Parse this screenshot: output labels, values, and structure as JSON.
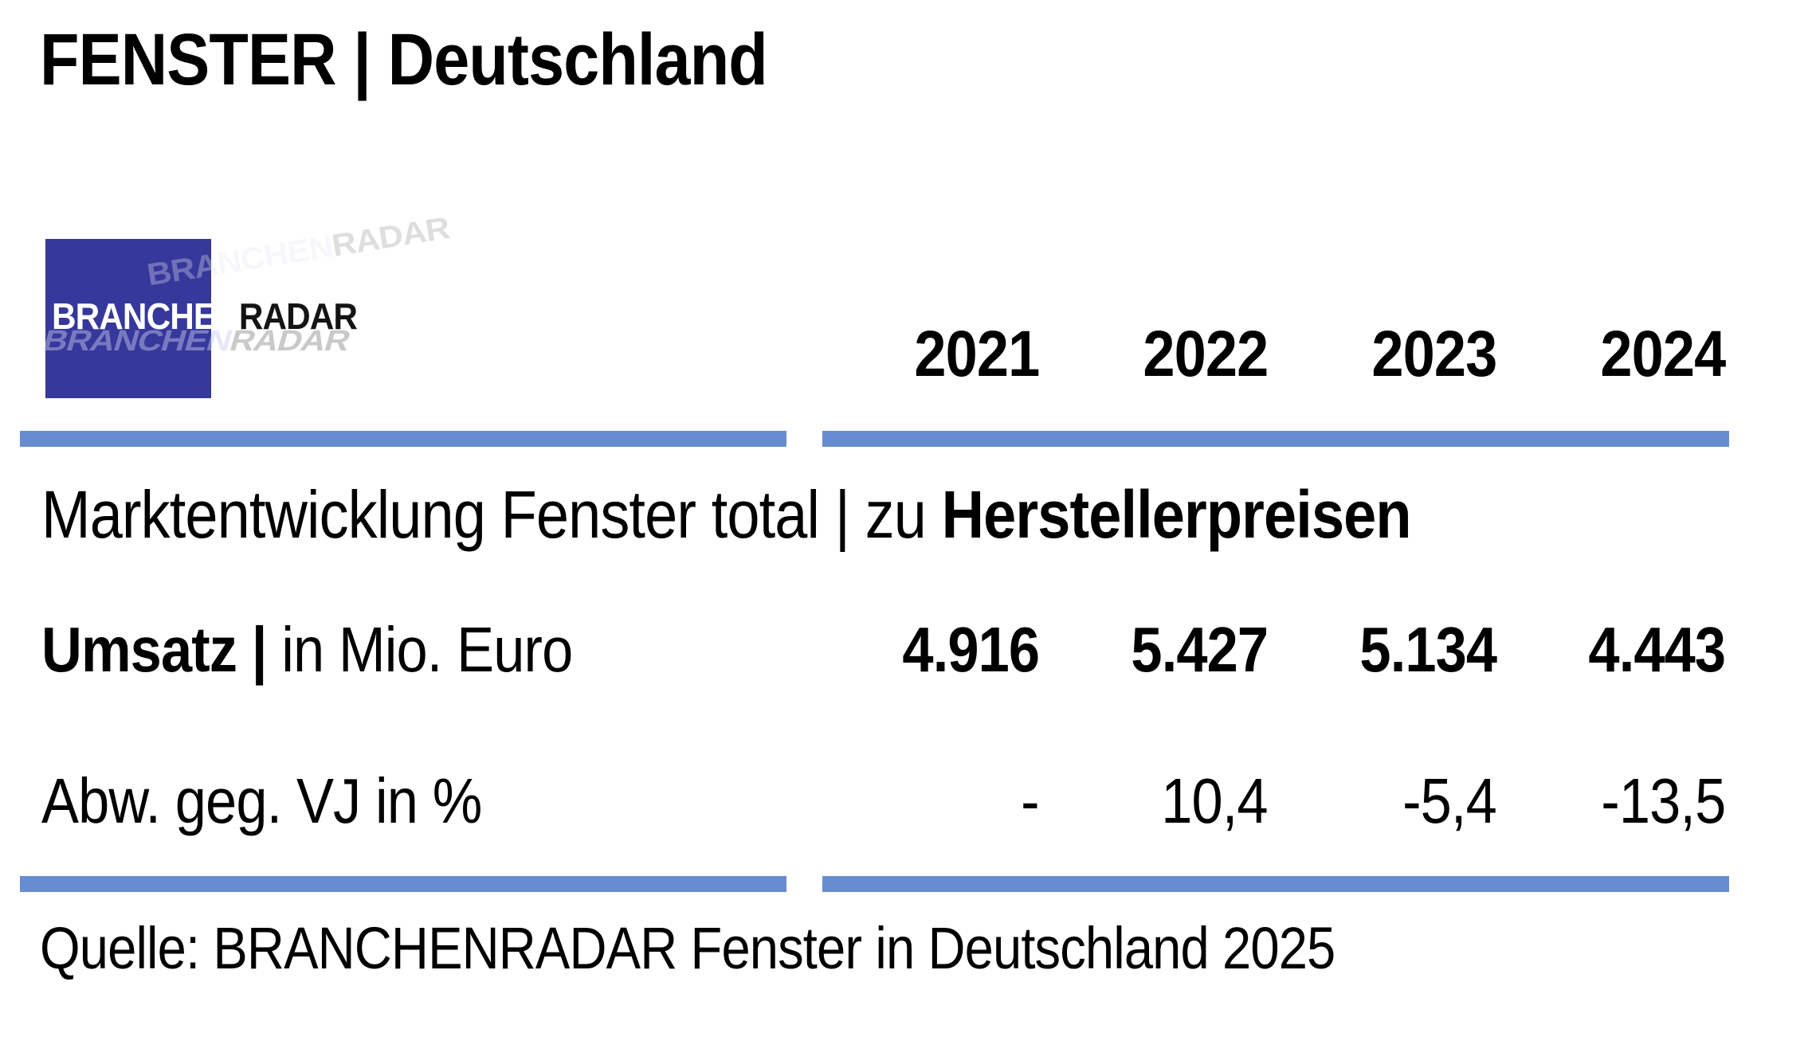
{
  "page": {
    "title": "FENSTER | Deutschland",
    "source": "Quelle: BRANCHENRADAR Fenster in Deutschland 2025"
  },
  "logo": {
    "part1": "BRANCHEN",
    "part2": "RADAR"
  },
  "colors": {
    "logo_square": "#37389B",
    "rule_blue": "#688CD0",
    "text": "#000000",
    "background": "#FFFFFF"
  },
  "table": {
    "years": [
      "2021",
      "2022",
      "2023",
      "2024"
    ],
    "section_title_regular": "Marktentwicklung Fenster total | zu",
    "section_title_bold": " Herstellerpreisen",
    "rows": [
      {
        "label_bold": "Umsatz |",
        "label_regular": " in Mio. Euro",
        "values": [
          "4.916",
          "5.427",
          "5.134",
          "4.443"
        ]
      },
      {
        "label_bold": "",
        "label_regular": "Abw. geg. VJ in %",
        "values": [
          "-",
          "10,4",
          "-5,4",
          "-13,5"
        ]
      }
    ]
  },
  "chart_data": {
    "type": "table",
    "title": "Marktentwicklung Fenster total | zu Herstellerpreisen",
    "categories": [
      "2021",
      "2022",
      "2023",
      "2024"
    ],
    "series": [
      {
        "name": "Umsatz | in Mio. Euro",
        "values": [
          4916,
          5427,
          5134,
          4443
        ]
      },
      {
        "name": "Abw. geg. VJ in %",
        "values": [
          null,
          10.4,
          -5.4,
          -13.5
        ]
      }
    ],
    "source": "Quelle: BRANCHENRADAR Fenster in Deutschland 2025"
  }
}
